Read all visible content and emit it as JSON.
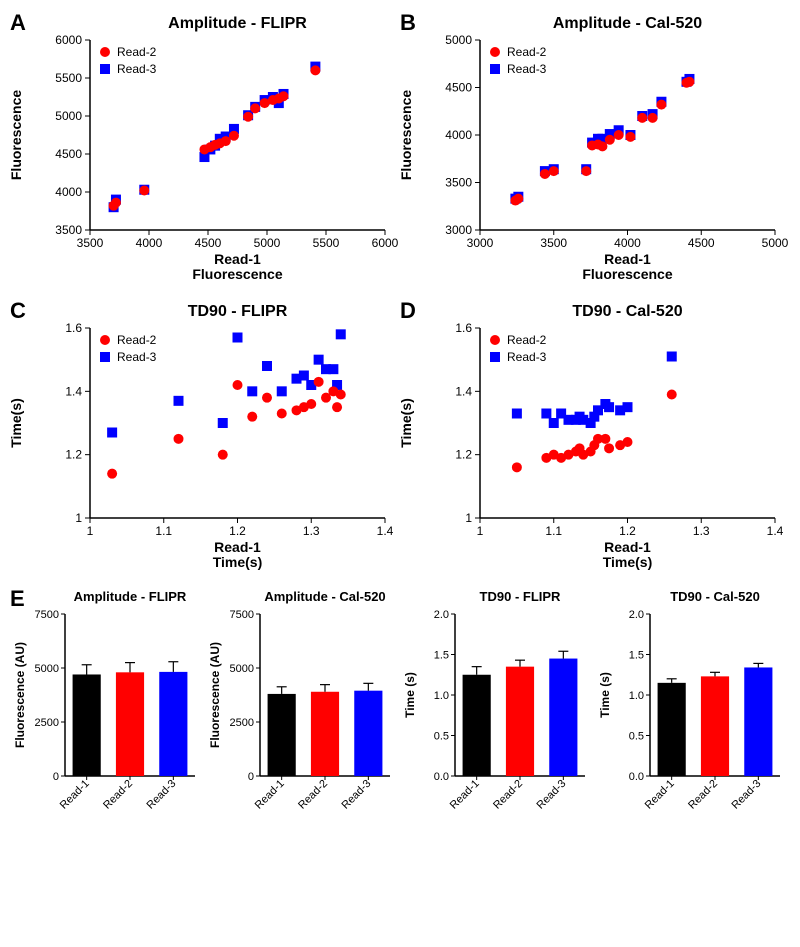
{
  "colors": {
    "read1": "#000000",
    "read2": "#ff0000",
    "read3": "#0000ff",
    "axis": "#000000",
    "bg": "#ffffff",
    "error": "#000000"
  },
  "legend_labels": {
    "read2": "Read-2",
    "read3": "Read-3"
  },
  "bar_labels": [
    "Read-1",
    "Read-2",
    "Read-3"
  ],
  "panelA": {
    "title": "Amplitude - FLIPR",
    "xlabel": "Read-1\nFluorescence",
    "ylabel": "Read-2 or Read-3\nFluorescence",
    "xlim": [
      3500,
      6000
    ],
    "ylim": [
      3500,
      6000
    ],
    "xticks": [
      3500,
      4000,
      4500,
      5000,
      5500,
      6000
    ],
    "yticks": [
      3500,
      4000,
      4500,
      5000,
      5500,
      6000
    ],
    "read2": {
      "x": [
        3700,
        3720,
        3960,
        4470,
        4520,
        4560,
        4600,
        4650,
        4720,
        4840,
        4900,
        4980,
        5050,
        5100,
        5140,
        5410
      ],
      "y": [
        3820,
        3860,
        4020,
        4560,
        4590,
        4620,
        4640,
        4670,
        4740,
        4990,
        5100,
        5170,
        5210,
        5230,
        5260,
        5600
      ]
    },
    "read3": {
      "x": [
        3700,
        3720,
        3960,
        4470,
        4520,
        4560,
        4600,
        4650,
        4720,
        4840,
        4900,
        4980,
        5050,
        5100,
        5140,
        5410
      ],
      "y": [
        3800,
        3900,
        4030,
        4460,
        4560,
        4610,
        4700,
        4730,
        4830,
        5010,
        5120,
        5210,
        5250,
        5170,
        5290,
        5650
      ]
    },
    "marker_size": 5
  },
  "panelB": {
    "title": "Amplitude - Cal-520",
    "xlabel": "Read-1\nFluorescence",
    "ylabel": "Read-2 or Read-3\nFluorescence",
    "xlim": [
      3000,
      5000
    ],
    "ylim": [
      3000,
      5000
    ],
    "xticks": [
      3000,
      3500,
      4000,
      4500,
      5000
    ],
    "yticks": [
      3000,
      3500,
      4000,
      4500,
      5000
    ],
    "read2": {
      "x": [
        3240,
        3260,
        3440,
        3500,
        3720,
        3760,
        3800,
        3830,
        3880,
        3940,
        4020,
        4100,
        4170,
        4230,
        4400,
        4420
      ],
      "y": [
        3310,
        3330,
        3590,
        3620,
        3620,
        3890,
        3900,
        3880,
        3950,
        4000,
        3980,
        4180,
        4180,
        4320,
        4550,
        4560
      ]
    },
    "read3": {
      "x": [
        3240,
        3260,
        3440,
        3500,
        3720,
        3760,
        3800,
        3830,
        3880,
        3940,
        4020,
        4100,
        4170,
        4230,
        4400,
        4420
      ],
      "y": [
        3330,
        3350,
        3620,
        3640,
        3640,
        3920,
        3960,
        3960,
        4010,
        4050,
        4000,
        4200,
        4220,
        4350,
        4560,
        4590
      ]
    },
    "marker_size": 5
  },
  "panelC": {
    "title": "TD90 - FLIPR",
    "xlabel": "Read-1\nTime(s)",
    "ylabel": "Read-2 or Read-3\nTime(s)",
    "xlim": [
      1.0,
      1.4
    ],
    "ylim": [
      1.0,
      1.6
    ],
    "xticks": [
      1.0,
      1.1,
      1.2,
      1.3,
      1.4
    ],
    "yticks": [
      1.0,
      1.2,
      1.4,
      1.6
    ],
    "read2": {
      "x": [
        1.03,
        1.12,
        1.18,
        1.2,
        1.22,
        1.24,
        1.26,
        1.28,
        1.29,
        1.3,
        1.31,
        1.32,
        1.33,
        1.335,
        1.34
      ],
      "y": [
        1.14,
        1.25,
        1.2,
        1.42,
        1.32,
        1.38,
        1.33,
        1.34,
        1.35,
        1.36,
        1.43,
        1.38,
        1.4,
        1.35,
        1.39
      ]
    },
    "read3": {
      "x": [
        1.03,
        1.12,
        1.18,
        1.2,
        1.22,
        1.24,
        1.26,
        1.28,
        1.29,
        1.3,
        1.31,
        1.32,
        1.33,
        1.335,
        1.34
      ],
      "y": [
        1.27,
        1.37,
        1.3,
        1.57,
        1.4,
        1.48,
        1.4,
        1.44,
        1.45,
        1.42,
        1.5,
        1.47,
        1.47,
        1.42,
        1.58
      ]
    },
    "marker_size": 5
  },
  "panelD": {
    "title": "TD90 - Cal-520",
    "xlabel": "Read-1\nTime(s)",
    "ylabel": "Read-2 or Read-3\nTime(s)",
    "xlim": [
      1.0,
      1.4
    ],
    "ylim": [
      1.0,
      1.6
    ],
    "xticks": [
      1.0,
      1.1,
      1.2,
      1.3,
      1.4
    ],
    "yticks": [
      1.0,
      1.2,
      1.4,
      1.6
    ],
    "read2": {
      "x": [
        1.05,
        1.09,
        1.1,
        1.11,
        1.12,
        1.13,
        1.135,
        1.14,
        1.15,
        1.155,
        1.16,
        1.17,
        1.175,
        1.19,
        1.2,
        1.26
      ],
      "y": [
        1.16,
        1.19,
        1.2,
        1.19,
        1.2,
        1.21,
        1.22,
        1.2,
        1.21,
        1.23,
        1.25,
        1.25,
        1.22,
        1.23,
        1.24,
        1.39
      ]
    },
    "read3": {
      "x": [
        1.05,
        1.09,
        1.1,
        1.11,
        1.12,
        1.13,
        1.135,
        1.14,
        1.15,
        1.155,
        1.16,
        1.17,
        1.175,
        1.19,
        1.2,
        1.26
      ],
      "y": [
        1.33,
        1.33,
        1.3,
        1.33,
        1.31,
        1.31,
        1.32,
        1.31,
        1.3,
        1.32,
        1.34,
        1.36,
        1.35,
        1.34,
        1.35,
        1.51
      ]
    },
    "marker_size": 5
  },
  "panelE": {
    "charts": [
      {
        "title": "Amplitude - FLIPR",
        "ylabel": "Fluorescence (AU)",
        "ylim": [
          0,
          7500
        ],
        "yticks": [
          0,
          2500,
          5000,
          7500
        ],
        "values": [
          4700,
          4800,
          4820
        ],
        "errors": [
          450,
          450,
          470
        ]
      },
      {
        "title": "Amplitude - Cal-520",
        "ylabel": "Fluorescence (AU)",
        "ylim": [
          0,
          7500
        ],
        "yticks": [
          0,
          2500,
          5000,
          7500
        ],
        "values": [
          3800,
          3900,
          3950
        ],
        "errors": [
          330,
          330,
          340
        ]
      },
      {
        "title": "TD90 - FLIPR",
        "ylabel": "Time (s)",
        "ylim": [
          0,
          2.0
        ],
        "yticks": [
          0,
          0.5,
          1.0,
          1.5,
          2.0
        ],
        "values": [
          1.25,
          1.35,
          1.45
        ],
        "errors": [
          0.1,
          0.08,
          0.09
        ]
      },
      {
        "title": "TD90 - Cal-520",
        "ylabel": "Time (s)",
        "ylim": [
          0,
          2.0
        ],
        "yticks": [
          0,
          0.5,
          1.0,
          1.5,
          2.0
        ],
        "values": [
          1.15,
          1.23,
          1.34
        ],
        "errors": [
          0.05,
          0.05,
          0.05
        ]
      }
    ],
    "bar_colors": [
      "#000000",
      "#ff0000",
      "#0000ff"
    ],
    "bar_width": 0.65
  },
  "panel_labels": {
    "A": "A",
    "B": "B",
    "C": "C",
    "D": "D",
    "E": "E"
  }
}
